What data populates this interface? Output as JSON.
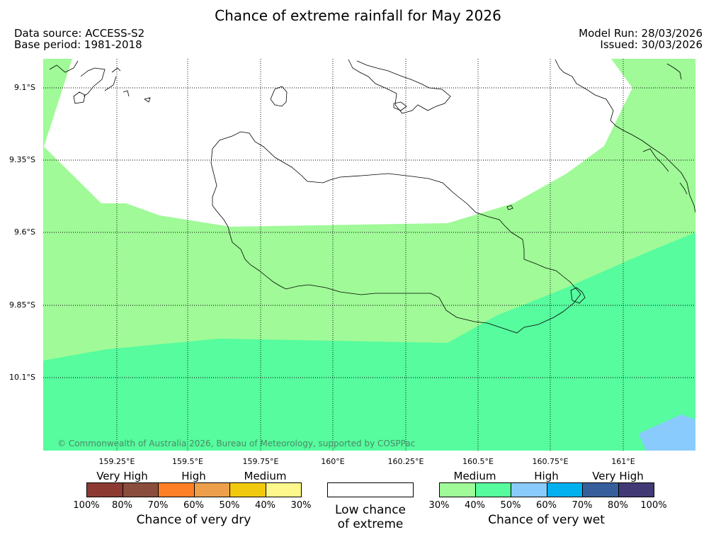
{
  "title": "Chance of extreme rainfall for May 2026",
  "meta": {
    "data_source": "Data source: ACCESS-S2",
    "base_period": "Base period: 1981-2018",
    "model_run": "Model Run: 28/03/2026",
    "issued": "Issued: 30/03/2026"
  },
  "map": {
    "lat_labels": [
      "9.1°S",
      "9.35°S",
      "9.6°S",
      "9.85°S",
      "10.1°S"
    ],
    "lon_labels": [
      "159.25°E",
      "159.5°E",
      "159.75°E",
      "160°E",
      "160.25°E",
      "160.5°E",
      "160.75°E",
      "161°E"
    ],
    "copyright": "© Commonwealth of Australia 2026, Bureau of Meteorology, supported by COSPPac",
    "colors": {
      "low_chance": "#ffffff",
      "wet_medium_30_40": "#9ffa97",
      "wet_medium_40_50": "#56fc9e",
      "wet_high_50_60": "#89cbfc"
    }
  },
  "legend": {
    "dry": {
      "groups": [
        "Very High",
        "High",
        "Medium"
      ],
      "ticks": [
        "100%",
        "80%",
        "70%",
        "60%",
        "50%",
        "40%",
        "30%"
      ],
      "colors": [
        "#8d3a33",
        "#8b4d3d",
        "#fd7f26",
        "#ee9f4c",
        "#f1c90e",
        "#fef78b"
      ],
      "title": "Chance of very dry"
    },
    "low": {
      "line1": "Low chance",
      "line2": "of extreme"
    },
    "wet": {
      "groups": [
        "Medium",
        "High",
        "Very High"
      ],
      "ticks": [
        "30%",
        "40%",
        "50%",
        "60%",
        "70%",
        "80%",
        "100%"
      ],
      "colors": [
        "#9ffa97",
        "#56fc9e",
        "#89cbfc",
        "#02b0f0",
        "#365f9c",
        "#413a75"
      ],
      "title": "Chance of very wet"
    }
  }
}
